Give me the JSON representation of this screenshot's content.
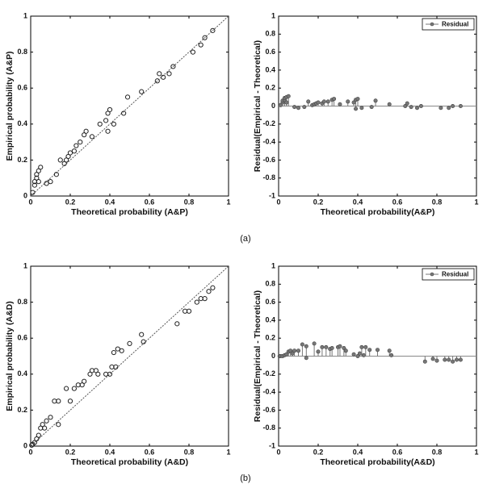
{
  "captions": [
    "(a)",
    "(b)"
  ],
  "chart_data": [
    {
      "type": "scatter",
      "xlabel": "Theoretical probability (A&P)",
      "ylabel": "Empirical probability (A&P)",
      "x": [
        0.01,
        0.02,
        0.02,
        0.03,
        0.03,
        0.04,
        0.05,
        0.04,
        0.08,
        0.1,
        0.13,
        0.15,
        0.17,
        0.18,
        0.19,
        0.2,
        0.22,
        0.23,
        0.25,
        0.27,
        0.28,
        0.31,
        0.35,
        0.38,
        0.39,
        0.39,
        0.4,
        0.42,
        0.47,
        0.49,
        0.56,
        0.64,
        0.65,
        0.67,
        0.7,
        0.72,
        0.82,
        0.86,
        0.88,
        0.92
      ],
      "values": [
        0.02,
        0.06,
        0.08,
        0.1,
        0.12,
        0.14,
        0.16,
        0.08,
        0.07,
        0.08,
        0.12,
        0.2,
        0.18,
        0.2,
        0.22,
        0.24,
        0.25,
        0.28,
        0.3,
        0.34,
        0.36,
        0.33,
        0.4,
        0.42,
        0.36,
        0.46,
        0.48,
        0.4,
        0.46,
        0.55,
        0.58,
        0.64,
        0.68,
        0.66,
        0.68,
        0.72,
        0.8,
        0.84,
        0.88,
        0.92
      ],
      "color": "#222",
      "xlim": [
        0,
        1
      ],
      "ylim": [
        0,
        1
      ],
      "xticks": [
        0,
        0.2,
        0.4,
        0.6,
        0.8,
        1
      ],
      "yticks": [
        0,
        0.2,
        0.4,
        0.6,
        0.8,
        1
      ]
    },
    {
      "type": "stem",
      "xlabel": "Theoretical probability(A&P)",
      "ylabel": "Residual(Empirical - Theoretical)",
      "legend": "upper right",
      "x": [
        0.01,
        0.02,
        0.02,
        0.03,
        0.03,
        0.04,
        0.05,
        0.04,
        0.08,
        0.1,
        0.13,
        0.15,
        0.17,
        0.18,
        0.19,
        0.2,
        0.22,
        0.23,
        0.25,
        0.27,
        0.28,
        0.31,
        0.35,
        0.38,
        0.39,
        0.39,
        0.4,
        0.42,
        0.47,
        0.49,
        0.56,
        0.64,
        0.65,
        0.67,
        0.7,
        0.72,
        0.82,
        0.86,
        0.88,
        0.92
      ],
      "series": [
        {
          "name": "Residual",
          "color": "#777",
          "values": [
            0.01,
            0.04,
            0.06,
            0.07,
            0.09,
            0.1,
            0.11,
            0.04,
            -0.01,
            -0.02,
            -0.01,
            0.05,
            0.01,
            0.02,
            0.03,
            0.04,
            0.03,
            0.05,
            0.05,
            0.07,
            0.08,
            0.02,
            0.05,
            0.04,
            -0.03,
            0.07,
            0.08,
            -0.02,
            -0.01,
            0.06,
            0.02,
            0,
            0.03,
            -0.01,
            -0.02,
            0,
            -0.02,
            -0.02,
            0,
            0
          ]
        }
      ],
      "xlim": [
        0,
        1
      ],
      "ylim": [
        -1,
        1
      ],
      "xticks": [
        0,
        0.2,
        0.4,
        0.6,
        0.8,
        1
      ],
      "yticks": [
        -1,
        -0.8,
        -0.6,
        -0.4,
        -0.2,
        0,
        0.2,
        0.4,
        0.6,
        0.8,
        1
      ]
    },
    {
      "type": "scatter",
      "xlabel": "Theoretical probability (A&D)",
      "ylabel": "Empirical probability (A&D)",
      "x": [
        0.005,
        0.01,
        0.02,
        0.03,
        0.04,
        0.05,
        0.06,
        0.07,
        0.08,
        0.1,
        0.12,
        0.14,
        0.14,
        0.18,
        0.2,
        0.22,
        0.24,
        0.26,
        0.27,
        0.3,
        0.31,
        0.33,
        0.34,
        0.38,
        0.4,
        0.41,
        0.42,
        0.43,
        0.44,
        0.46,
        0.5,
        0.56,
        0.57,
        0.74,
        0.78,
        0.8,
        0.84,
        0.86,
        0.88,
        0.9,
        0.92
      ],
      "values": [
        0.005,
        0.01,
        0.02,
        0.04,
        0.06,
        0.1,
        0.12,
        0.1,
        0.14,
        0.16,
        0.25,
        0.25,
        0.12,
        0.32,
        0.25,
        0.32,
        0.34,
        0.34,
        0.36,
        0.4,
        0.42,
        0.42,
        0.4,
        0.4,
        0.4,
        0.44,
        0.52,
        0.44,
        0.54,
        0.53,
        0.57,
        0.62,
        0.58,
        0.68,
        0.75,
        0.75,
        0.8,
        0.82,
        0.82,
        0.86,
        0.88
      ],
      "color": "#222",
      "xlim": [
        0,
        1
      ],
      "ylim": [
        0,
        1
      ],
      "xticks": [
        0,
        0.2,
        0.4,
        0.6,
        0.8,
        1
      ],
      "yticks": [
        0,
        0.2,
        0.4,
        0.6,
        0.8,
        1
      ]
    },
    {
      "type": "stem",
      "xlabel": "Theoretical probability(A&D)",
      "ylabel": "Residual(Empirical - Theoretical)",
      "legend": "upper right",
      "x": [
        0.005,
        0.01,
        0.02,
        0.03,
        0.04,
        0.05,
        0.06,
        0.07,
        0.08,
        0.1,
        0.12,
        0.14,
        0.14,
        0.18,
        0.2,
        0.22,
        0.24,
        0.26,
        0.27,
        0.3,
        0.31,
        0.33,
        0.34,
        0.38,
        0.4,
        0.41,
        0.42,
        0.43,
        0.44,
        0.46,
        0.5,
        0.56,
        0.57,
        0.74,
        0.78,
        0.8,
        0.84,
        0.86,
        0.88,
        0.9,
        0.92
      ],
      "series": [
        {
          "name": "Residual",
          "color": "#777",
          "values": [
            0,
            0,
            0,
            0.01,
            0.02,
            0.05,
            0.06,
            0.03,
            0.06,
            0.06,
            0.13,
            0.11,
            -0.02,
            0.14,
            0.05,
            0.1,
            0.1,
            0.08,
            0.09,
            0.1,
            0.11,
            0.09,
            0.06,
            0.02,
            0,
            0.03,
            0.1,
            0.01,
            0.1,
            0.07,
            0.07,
            0.06,
            0.01,
            -0.06,
            -0.03,
            -0.05,
            -0.04,
            -0.04,
            -0.06,
            -0.04,
            -0.04
          ]
        }
      ],
      "xlim": [
        0,
        1
      ],
      "ylim": [
        -1,
        1
      ],
      "xticks": [
        0,
        0.2,
        0.4,
        0.6,
        0.8,
        1
      ],
      "yticks": [
        -1,
        -0.8,
        -0.6,
        -0.4,
        -0.2,
        0,
        0.2,
        0.4,
        0.6,
        0.8,
        1
      ]
    }
  ]
}
